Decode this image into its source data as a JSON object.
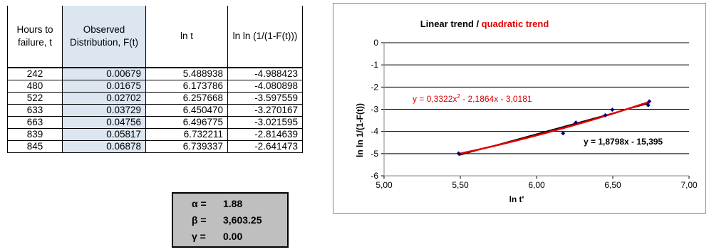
{
  "table": {
    "headers": [
      "Hours to failure, t",
      "Observed Distribution, F(t)",
      "ln t",
      "ln ln (1/(1-F(t)))"
    ],
    "rows": [
      [
        "242",
        "0.00679",
        "5.488938",
        "-4.988423"
      ],
      [
        "480",
        "0.01675",
        "6.173786",
        "-4.080898"
      ],
      [
        "522",
        "0.02702",
        "6.257668",
        "-3.597559"
      ],
      [
        "633",
        "0.03729",
        "6.450470",
        "-3.270167"
      ],
      [
        "663",
        "0.04756",
        "6.496775",
        "-3.021595"
      ],
      [
        "839",
        "0.05817",
        "6.732211",
        "-2.814639"
      ],
      [
        "845",
        "0.06878",
        "6.739337",
        "-2.641473"
      ]
    ],
    "highlight_color": "#dce6f1"
  },
  "params": [
    {
      "symbol": "α =",
      "value": "1.88"
    },
    {
      "symbol": "β =",
      "value": "3,603.25"
    },
    {
      "symbol": "γ =",
      "value": "0.00"
    }
  ],
  "chart_data": {
    "type": "scatter",
    "title": "Linear trend / quadratic trend",
    "title_parts": {
      "linear": "Linear trend",
      "separator": " / ",
      "quadratic": "quadratic trend"
    },
    "xlabel": "ln t'",
    "ylabel": "ln ln 1/(1-F(t))",
    "xlim": [
      5.0,
      7.0
    ],
    "ylim": [
      -6,
      0
    ],
    "x_ticks": [
      "5,00",
      "5,50",
      "6,00",
      "6,50",
      "7,00"
    ],
    "y_ticks": [
      "0",
      "-1",
      "-2",
      "-3",
      "-4",
      "-5",
      "-6"
    ],
    "x_tick_values": [
      5.0,
      5.5,
      6.0,
      6.5,
      7.0
    ],
    "y_tick_values": [
      0,
      -1,
      -2,
      -3,
      -4,
      -5,
      -6
    ],
    "grid": "horizontal",
    "points": {
      "x": [
        5.488938,
        6.173786,
        6.257668,
        6.45047,
        6.496775,
        6.732211,
        6.739337
      ],
      "y": [
        -4.988423,
        -4.080898,
        -3.597559,
        -3.270167,
        -3.021595,
        -2.814639,
        -2.641473
      ]
    },
    "linear_fit": {
      "slope": 1.8798,
      "intercept": -15.395,
      "label": "y = 1,8798x - 15,395"
    },
    "quadratic_fit": {
      "a": 0.3322,
      "b": -2.1864,
      "c": -3.0181,
      "label": "y = 0,3322x² - 2,1864x - 3,0181"
    },
    "colors": {
      "points": "#00008b",
      "quadratic": "#e00000",
      "linear": "#000000",
      "grid": "#000000"
    }
  }
}
